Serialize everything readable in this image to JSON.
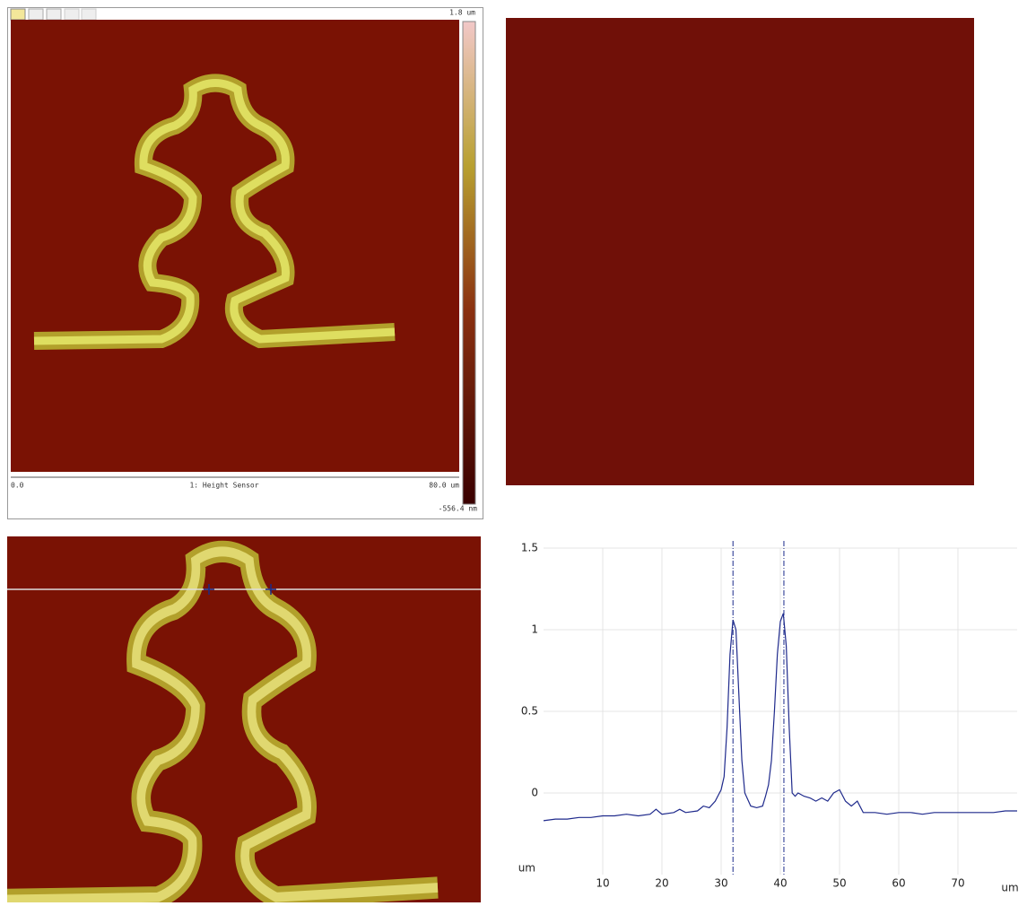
{
  "top_left_panel": {
    "scale_max": "1.8 um",
    "axis_start": "0.0",
    "channel": "1: Height Sensor",
    "axis_end": "80.0 um",
    "scale_min": "-556.4 nm"
  },
  "chart_data": {
    "type": "line",
    "x": [
      0,
      2,
      4,
      6,
      8,
      10,
      12,
      14,
      16,
      18,
      19,
      20,
      22,
      23,
      24,
      26,
      27,
      28,
      29,
      30,
      30.5,
      31,
      31.5,
      32,
      32.5,
      33,
      33.5,
      34,
      35,
      36,
      37,
      37.5,
      38,
      38.5,
      39,
      39.5,
      40,
      40.5,
      41,
      41.5,
      42,
      42.5,
      43,
      44,
      45,
      46,
      47,
      48,
      49,
      50,
      51,
      52,
      53,
      54,
      56,
      58,
      60,
      62,
      64,
      66,
      68,
      70,
      72,
      74,
      76,
      78,
      80
    ],
    "series": [
      {
        "color": "#1f2a8c",
        "values": [
          -0.17,
          -0.16,
          -0.16,
          -0.15,
          -0.15,
          -0.14,
          -0.14,
          -0.13,
          -0.14,
          -0.13,
          -0.1,
          -0.13,
          -0.12,
          -0.1,
          -0.12,
          -0.11,
          -0.08,
          -0.09,
          -0.05,
          0.02,
          0.1,
          0.4,
          0.85,
          1.06,
          1.0,
          0.6,
          0.2,
          0.0,
          -0.08,
          -0.09,
          -0.08,
          -0.02,
          0.05,
          0.2,
          0.5,
          0.85,
          1.05,
          1.1,
          0.9,
          0.4,
          0.0,
          -0.02,
          0.0,
          -0.02,
          -0.03,
          -0.05,
          -0.03,
          -0.05,
          0.0,
          0.02,
          -0.05,
          -0.08,
          -0.05,
          -0.12,
          -0.12,
          -0.13,
          -0.12,
          -0.12,
          -0.13,
          -0.12,
          -0.12,
          -0.12,
          -0.12,
          -0.12,
          -0.12,
          -0.11,
          -0.11
        ]
      }
    ],
    "xlim": [
      0,
      80
    ],
    "ylim": [
      -0.5,
      1.5
    ],
    "xticks": [
      10,
      20,
      30,
      40,
      50,
      60,
      70
    ],
    "yticks": [
      0,
      0.5,
      1,
      1.5
    ],
    "xlabel": "um",
    "ylabel": "um",
    "grid": true,
    "cursors": [
      32,
      40.6
    ]
  }
}
